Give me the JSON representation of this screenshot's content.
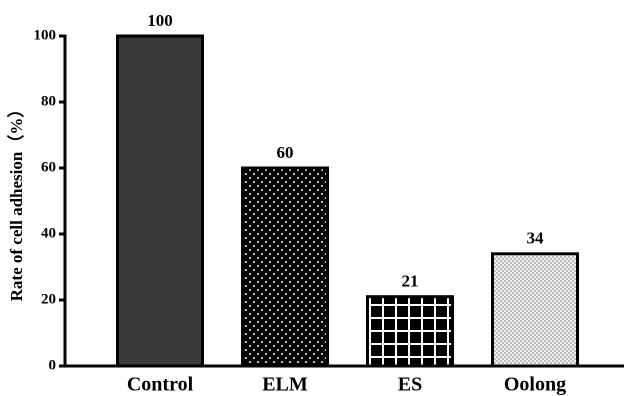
{
  "chart_data": {
    "type": "bar",
    "y_label": "Rate of cell adhesion（%）",
    "categories": [
      "Control",
      "ELM",
      "ES",
      "Oolong"
    ],
    "values": [
      100,
      60,
      21,
      34
    ],
    "colors": [
      "#3a3a3a",
      "#000000",
      "#000000",
      "#f2f2f2"
    ],
    "ylim": [
      0,
      100
    ],
    "yticks": [
      0,
      20,
      40,
      60,
      80,
      100
    ],
    "grid": false
  }
}
